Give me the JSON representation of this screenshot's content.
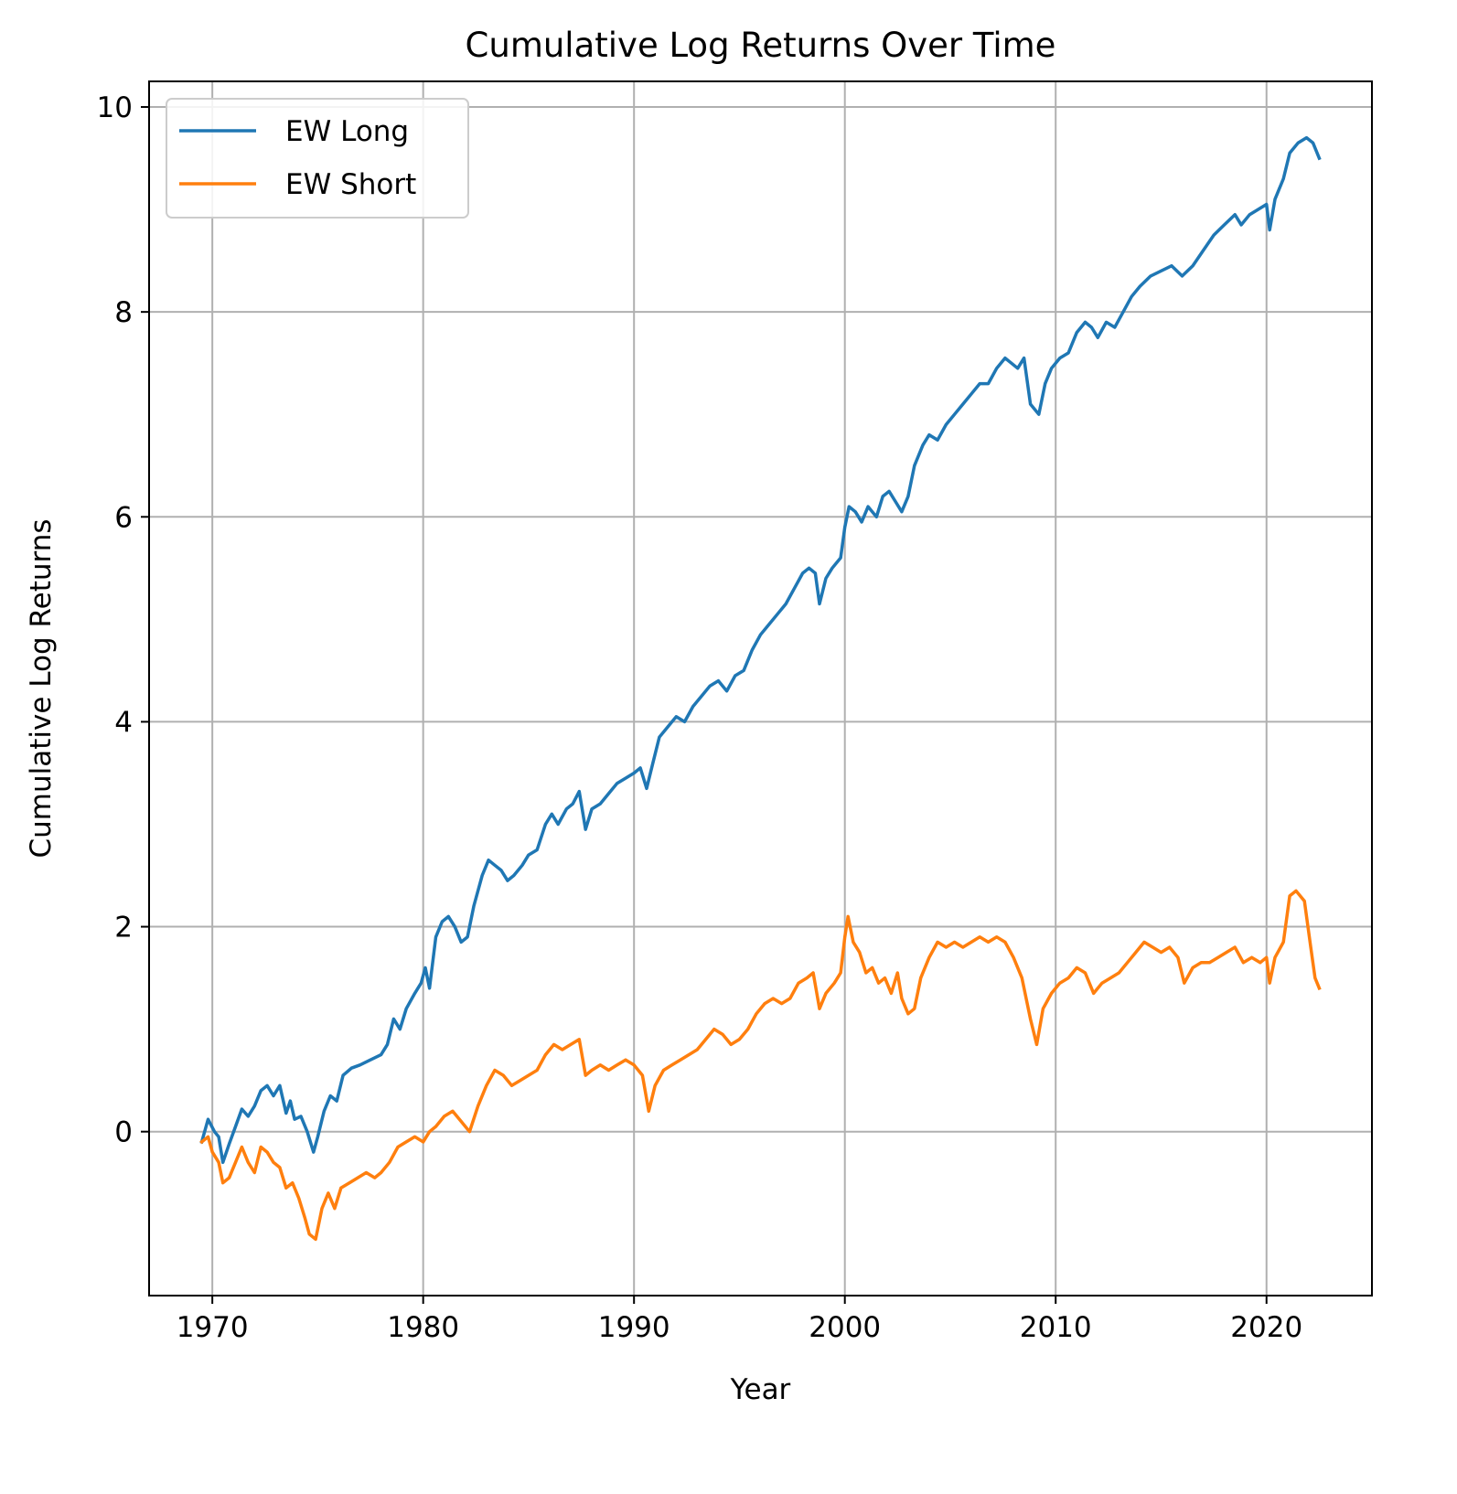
{
  "chart_data": {
    "type": "line",
    "title": "Cumulative Log Returns Over Time",
    "xlabel": "Year",
    "ylabel": "Cumulative Log Returns",
    "xlim": [
      1967,
      2025
    ],
    "ylim": [
      -1.6,
      10.25
    ],
    "x_ticks": [
      1970,
      1980,
      1990,
      2000,
      2010,
      2020
    ],
    "y_ticks": [
      0,
      2,
      4,
      6,
      8,
      10
    ],
    "x_tick_labels": [
      "1970",
      "1980",
      "1990",
      "2000",
      "2010",
      "2020"
    ],
    "y_tick_labels": [
      "0",
      "2",
      "4",
      "6",
      "8",
      "10"
    ],
    "grid": true,
    "legend": "upper-left",
    "series": [
      {
        "name": "EW Long",
        "color": "#1f77b4",
        "points": [
          [
            1969.5,
            -0.1
          ],
          [
            1969.8,
            0.12
          ],
          [
            1970.1,
            0.0
          ],
          [
            1970.3,
            -0.05
          ],
          [
            1970.5,
            -0.3
          ],
          [
            1970.8,
            -0.12
          ],
          [
            1971.1,
            0.05
          ],
          [
            1971.4,
            0.22
          ],
          [
            1971.7,
            0.15
          ],
          [
            1972.0,
            0.25
          ],
          [
            1972.3,
            0.4
          ],
          [
            1972.6,
            0.45
          ],
          [
            1972.9,
            0.35
          ],
          [
            1973.2,
            0.45
          ],
          [
            1973.5,
            0.18
          ],
          [
            1973.7,
            0.3
          ],
          [
            1973.9,
            0.12
          ],
          [
            1974.2,
            0.15
          ],
          [
            1974.5,
            0.0
          ],
          [
            1974.8,
            -0.2
          ],
          [
            1975.0,
            -0.05
          ],
          [
            1975.3,
            0.2
          ],
          [
            1975.6,
            0.35
          ],
          [
            1975.9,
            0.3
          ],
          [
            1976.2,
            0.55
          ],
          [
            1976.6,
            0.62
          ],
          [
            1977.0,
            0.65
          ],
          [
            1977.5,
            0.7
          ],
          [
            1978.0,
            0.75
          ],
          [
            1978.3,
            0.85
          ],
          [
            1978.6,
            1.1
          ],
          [
            1978.9,
            1.0
          ],
          [
            1979.2,
            1.2
          ],
          [
            1979.6,
            1.35
          ],
          [
            1979.9,
            1.45
          ],
          [
            1980.1,
            1.6
          ],
          [
            1980.3,
            1.4
          ],
          [
            1980.6,
            1.9
          ],
          [
            1980.9,
            2.05
          ],
          [
            1981.2,
            2.1
          ],
          [
            1981.5,
            2.0
          ],
          [
            1981.8,
            1.85
          ],
          [
            1982.1,
            1.9
          ],
          [
            1982.4,
            2.2
          ],
          [
            1982.8,
            2.5
          ],
          [
            1983.1,
            2.65
          ],
          [
            1983.4,
            2.6
          ],
          [
            1983.7,
            2.55
          ],
          [
            1984.0,
            2.45
          ],
          [
            1984.3,
            2.5
          ],
          [
            1984.7,
            2.6
          ],
          [
            1985.0,
            2.7
          ],
          [
            1985.4,
            2.75
          ],
          [
            1985.8,
            3.0
          ],
          [
            1986.1,
            3.1
          ],
          [
            1986.4,
            3.0
          ],
          [
            1986.8,
            3.15
          ],
          [
            1987.1,
            3.2
          ],
          [
            1987.4,
            3.32
          ],
          [
            1987.7,
            2.95
          ],
          [
            1988.0,
            3.15
          ],
          [
            1988.4,
            3.2
          ],
          [
            1988.8,
            3.3
          ],
          [
            1989.2,
            3.4
          ],
          [
            1989.6,
            3.45
          ],
          [
            1990.0,
            3.5
          ],
          [
            1990.3,
            3.55
          ],
          [
            1990.6,
            3.35
          ],
          [
            1990.9,
            3.6
          ],
          [
            1991.2,
            3.85
          ],
          [
            1991.6,
            3.95
          ],
          [
            1992.0,
            4.05
          ],
          [
            1992.4,
            4.0
          ],
          [
            1992.8,
            4.15
          ],
          [
            1993.2,
            4.25
          ],
          [
            1993.6,
            4.35
          ],
          [
            1994.0,
            4.4
          ],
          [
            1994.4,
            4.3
          ],
          [
            1994.8,
            4.45
          ],
          [
            1995.2,
            4.5
          ],
          [
            1995.6,
            4.7
          ],
          [
            1996.0,
            4.85
          ],
          [
            1996.4,
            4.95
          ],
          [
            1996.8,
            5.05
          ],
          [
            1997.2,
            5.15
          ],
          [
            1997.6,
            5.3
          ],
          [
            1998.0,
            5.45
          ],
          [
            1998.3,
            5.5
          ],
          [
            1998.6,
            5.45
          ],
          [
            1998.8,
            5.15
          ],
          [
            1999.1,
            5.4
          ],
          [
            1999.4,
            5.5
          ],
          [
            1999.8,
            5.6
          ],
          [
            2000.0,
            5.9
          ],
          [
            2000.2,
            6.1
          ],
          [
            2000.5,
            6.05
          ],
          [
            2000.8,
            5.95
          ],
          [
            2001.1,
            6.1
          ],
          [
            2001.5,
            6.0
          ],
          [
            2001.8,
            6.2
          ],
          [
            2002.1,
            6.25
          ],
          [
            2002.4,
            6.15
          ],
          [
            2002.7,
            6.05
          ],
          [
            2003.0,
            6.2
          ],
          [
            2003.3,
            6.5
          ],
          [
            2003.7,
            6.7
          ],
          [
            2004.0,
            6.8
          ],
          [
            2004.4,
            6.75
          ],
          [
            2004.8,
            6.9
          ],
          [
            2005.2,
            7.0
          ],
          [
            2005.6,
            7.1
          ],
          [
            2006.0,
            7.2
          ],
          [
            2006.4,
            7.3
          ],
          [
            2006.8,
            7.3
          ],
          [
            2007.2,
            7.45
          ],
          [
            2007.6,
            7.55
          ],
          [
            2007.9,
            7.5
          ],
          [
            2008.2,
            7.45
          ],
          [
            2008.5,
            7.55
          ],
          [
            2008.8,
            7.1
          ],
          [
            2009.2,
            7.0
          ],
          [
            2009.5,
            7.3
          ],
          [
            2009.8,
            7.45
          ],
          [
            2010.2,
            7.55
          ],
          [
            2010.6,
            7.6
          ],
          [
            2011.0,
            7.8
          ],
          [
            2011.4,
            7.9
          ],
          [
            2011.7,
            7.85
          ],
          [
            2012.0,
            7.75
          ],
          [
            2012.4,
            7.9
          ],
          [
            2012.8,
            7.85
          ],
          [
            2013.2,
            8.0
          ],
          [
            2013.6,
            8.15
          ],
          [
            2014.0,
            8.25
          ],
          [
            2014.5,
            8.35
          ],
          [
            2015.0,
            8.4
          ],
          [
            2015.5,
            8.45
          ],
          [
            2016.0,
            8.35
          ],
          [
            2016.5,
            8.45
          ],
          [
            2017.0,
            8.6
          ],
          [
            2017.5,
            8.75
          ],
          [
            2018.0,
            8.85
          ],
          [
            2018.5,
            8.95
          ],
          [
            2018.8,
            8.85
          ],
          [
            2019.2,
            8.95
          ],
          [
            2019.6,
            9.0
          ],
          [
            2020.0,
            9.05
          ],
          [
            2020.15,
            8.8
          ],
          [
            2020.4,
            9.1
          ],
          [
            2020.8,
            9.3
          ],
          [
            2021.1,
            9.55
          ],
          [
            2021.5,
            9.65
          ],
          [
            2021.9,
            9.7
          ],
          [
            2022.2,
            9.65
          ],
          [
            2022.5,
            9.5
          ]
        ]
      },
      {
        "name": "EW Short",
        "color": "#ff7f0e",
        "points": [
          [
            1969.5,
            -0.1
          ],
          [
            1969.8,
            -0.05
          ],
          [
            1970.0,
            -0.2
          ],
          [
            1970.3,
            -0.3
          ],
          [
            1970.5,
            -0.5
          ],
          [
            1970.8,
            -0.45
          ],
          [
            1971.1,
            -0.3
          ],
          [
            1971.4,
            -0.15
          ],
          [
            1971.7,
            -0.3
          ],
          [
            1972.0,
            -0.4
          ],
          [
            1972.3,
            -0.15
          ],
          [
            1972.6,
            -0.2
          ],
          [
            1972.9,
            -0.3
          ],
          [
            1973.2,
            -0.35
          ],
          [
            1973.5,
            -0.55
          ],
          [
            1973.8,
            -0.5
          ],
          [
            1974.1,
            -0.65
          ],
          [
            1974.4,
            -0.85
          ],
          [
            1974.6,
            -1.0
          ],
          [
            1974.9,
            -1.05
          ],
          [
            1975.2,
            -0.75
          ],
          [
            1975.5,
            -0.6
          ],
          [
            1975.8,
            -0.75
          ],
          [
            1976.1,
            -0.55
          ],
          [
            1976.5,
            -0.5
          ],
          [
            1976.9,
            -0.45
          ],
          [
            1977.3,
            -0.4
          ],
          [
            1977.7,
            -0.45
          ],
          [
            1978.0,
            -0.4
          ],
          [
            1978.4,
            -0.3
          ],
          [
            1978.8,
            -0.15
          ],
          [
            1979.2,
            -0.1
          ],
          [
            1979.6,
            -0.05
          ],
          [
            1980.0,
            -0.1
          ],
          [
            1980.3,
            0.0
          ],
          [
            1980.6,
            0.05
          ],
          [
            1981.0,
            0.15
          ],
          [
            1981.4,
            0.2
          ],
          [
            1981.8,
            0.1
          ],
          [
            1982.2,
            0.0
          ],
          [
            1982.6,
            0.25
          ],
          [
            1983.0,
            0.45
          ],
          [
            1983.4,
            0.6
          ],
          [
            1983.8,
            0.55
          ],
          [
            1984.2,
            0.45
          ],
          [
            1984.6,
            0.5
          ],
          [
            1985.0,
            0.55
          ],
          [
            1985.4,
            0.6
          ],
          [
            1985.8,
            0.75
          ],
          [
            1986.2,
            0.85
          ],
          [
            1986.6,
            0.8
          ],
          [
            1987.0,
            0.85
          ],
          [
            1987.4,
            0.9
          ],
          [
            1987.7,
            0.55
          ],
          [
            1988.0,
            0.6
          ],
          [
            1988.4,
            0.65
          ],
          [
            1988.8,
            0.6
          ],
          [
            1989.2,
            0.65
          ],
          [
            1989.6,
            0.7
          ],
          [
            1990.0,
            0.65
          ],
          [
            1990.4,
            0.55
          ],
          [
            1990.7,
            0.2
          ],
          [
            1991.0,
            0.45
          ],
          [
            1991.4,
            0.6
          ],
          [
            1991.8,
            0.65
          ],
          [
            1992.2,
            0.7
          ],
          [
            1992.6,
            0.75
          ],
          [
            1993.0,
            0.8
          ],
          [
            1993.4,
            0.9
          ],
          [
            1993.8,
            1.0
          ],
          [
            1994.2,
            0.95
          ],
          [
            1994.6,
            0.85
          ],
          [
            1995.0,
            0.9
          ],
          [
            1995.4,
            1.0
          ],
          [
            1995.8,
            1.15
          ],
          [
            1996.2,
            1.25
          ],
          [
            1996.6,
            1.3
          ],
          [
            1997.0,
            1.25
          ],
          [
            1997.4,
            1.3
          ],
          [
            1997.8,
            1.45
          ],
          [
            1998.2,
            1.5
          ],
          [
            1998.5,
            1.55
          ],
          [
            1998.8,
            1.2
          ],
          [
            1999.1,
            1.35
          ],
          [
            1999.5,
            1.45
          ],
          [
            1999.8,
            1.55
          ],
          [
            2000.0,
            1.9
          ],
          [
            2000.15,
            2.1
          ],
          [
            2000.4,
            1.85
          ],
          [
            2000.7,
            1.75
          ],
          [
            2001.0,
            1.55
          ],
          [
            2001.3,
            1.6
          ],
          [
            2001.6,
            1.45
          ],
          [
            2001.9,
            1.5
          ],
          [
            2002.2,
            1.35
          ],
          [
            2002.5,
            1.55
          ],
          [
            2002.7,
            1.3
          ],
          [
            2003.0,
            1.15
          ],
          [
            2003.3,
            1.2
          ],
          [
            2003.6,
            1.5
          ],
          [
            2004.0,
            1.7
          ],
          [
            2004.4,
            1.85
          ],
          [
            2004.8,
            1.8
          ],
          [
            2005.2,
            1.85
          ],
          [
            2005.6,
            1.8
          ],
          [
            2006.0,
            1.85
          ],
          [
            2006.4,
            1.9
          ],
          [
            2006.8,
            1.85
          ],
          [
            2007.2,
            1.9
          ],
          [
            2007.6,
            1.85
          ],
          [
            2008.0,
            1.7
          ],
          [
            2008.4,
            1.5
          ],
          [
            2008.8,
            1.1
          ],
          [
            2009.1,
            0.85
          ],
          [
            2009.4,
            1.2
          ],
          [
            2009.8,
            1.35
          ],
          [
            2010.2,
            1.45
          ],
          [
            2010.6,
            1.5
          ],
          [
            2011.0,
            1.6
          ],
          [
            2011.4,
            1.55
          ],
          [
            2011.8,
            1.35
          ],
          [
            2012.2,
            1.45
          ],
          [
            2012.6,
            1.5
          ],
          [
            2013.0,
            1.55
          ],
          [
            2013.4,
            1.65
          ],
          [
            2013.8,
            1.75
          ],
          [
            2014.2,
            1.85
          ],
          [
            2014.6,
            1.8
          ],
          [
            2015.0,
            1.75
          ],
          [
            2015.4,
            1.8
          ],
          [
            2015.8,
            1.7
          ],
          [
            2016.1,
            1.45
          ],
          [
            2016.5,
            1.6
          ],
          [
            2016.9,
            1.65
          ],
          [
            2017.3,
            1.65
          ],
          [
            2017.7,
            1.7
          ],
          [
            2018.1,
            1.75
          ],
          [
            2018.5,
            1.8
          ],
          [
            2018.9,
            1.65
          ],
          [
            2019.3,
            1.7
          ],
          [
            2019.7,
            1.65
          ],
          [
            2020.0,
            1.7
          ],
          [
            2020.15,
            1.45
          ],
          [
            2020.4,
            1.7
          ],
          [
            2020.8,
            1.85
          ],
          [
            2021.1,
            2.3
          ],
          [
            2021.4,
            2.35
          ],
          [
            2021.8,
            2.25
          ],
          [
            2022.1,
            1.8
          ],
          [
            2022.3,
            1.5
          ],
          [
            2022.5,
            1.4
          ]
        ]
      }
    ]
  }
}
